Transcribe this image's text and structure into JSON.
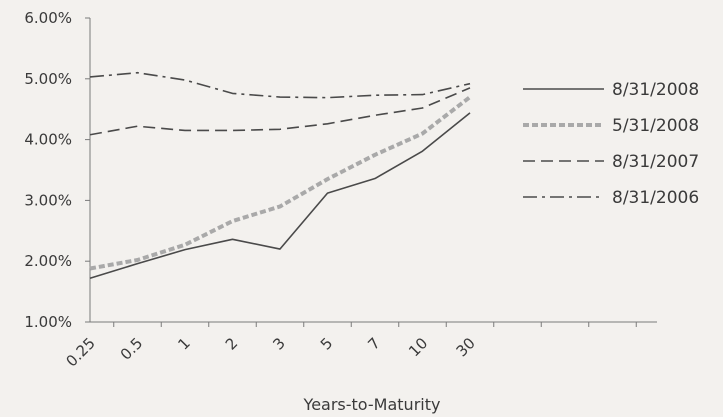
{
  "chart_data": {
    "type": "line",
    "title": "",
    "xlabel": "Years-to-Maturity",
    "ylabel": "",
    "categories": [
      "0.25",
      "0.5",
      "1",
      "2",
      "3",
      "5",
      "7",
      "10",
      "30"
    ],
    "y_ticks": [
      "1.00%",
      "2.00%",
      "3.00%",
      "4.00%",
      "5.00%",
      "6.00%"
    ],
    "ylim": [
      1.0,
      6.0
    ],
    "grid": false,
    "legend_position": "right",
    "series": [
      {
        "name": "8/31/2008",
        "style": "solid",
        "color": "#4a4a4a",
        "values": [
          1.72,
          1.96,
          2.19,
          2.36,
          2.2,
          3.12,
          3.36,
          3.81,
          4.44
        ]
      },
      {
        "name": "5/31/2008",
        "style": "dotted",
        "color": "#a9a9a9",
        "values": [
          1.88,
          2.02,
          2.27,
          2.66,
          2.9,
          3.35,
          3.75,
          4.1,
          4.7
        ]
      },
      {
        "name": "8/31/2007",
        "style": "dashed",
        "color": "#4a4a4a",
        "values": [
          4.08,
          4.22,
          4.15,
          4.15,
          4.17,
          4.26,
          4.4,
          4.52,
          4.85
        ]
      },
      {
        "name": "8/31/2006",
        "style": "dashdot",
        "color": "#4a4a4a",
        "values": [
          5.03,
          5.1,
          4.98,
          4.76,
          4.7,
          4.69,
          4.73,
          4.74,
          4.92
        ]
      }
    ]
  }
}
